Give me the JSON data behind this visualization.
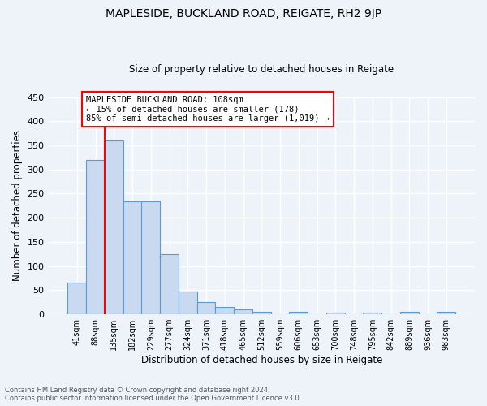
{
  "title": "MAPLESIDE, BUCKLAND ROAD, REIGATE, RH2 9JP",
  "subtitle": "Size of property relative to detached houses in Reigate",
  "xlabel": "Distribution of detached houses by size in Reigate",
  "ylabel": "Number of detached properties",
  "bar_labels": [
    "41sqm",
    "88sqm",
    "135sqm",
    "182sqm",
    "229sqm",
    "277sqm",
    "324sqm",
    "371sqm",
    "418sqm",
    "465sqm",
    "512sqm",
    "559sqm",
    "606sqm",
    "653sqm",
    "700sqm",
    "748sqm",
    "795sqm",
    "842sqm",
    "889sqm",
    "936sqm",
    "983sqm"
  ],
  "bar_values": [
    66,
    320,
    360,
    234,
    234,
    125,
    48,
    25,
    15,
    10,
    6,
    0,
    5,
    0,
    4,
    0,
    4,
    0,
    5,
    0,
    5
  ],
  "bar_color": "#c8d9f0",
  "bar_edge_color": "#5b9bd5",
  "annotation_line_color": "red",
  "annotation_text_line1": "MAPLESIDE BUCKLAND ROAD: 108sqm",
  "annotation_text_line2": "← 15% of detached houses are smaller (178)",
  "annotation_text_line3": "85% of semi-detached houses are larger (1,019) →",
  "annotation_box_color": "white",
  "annotation_box_edge_color": "red",
  "ylim": [
    0,
    450
  ],
  "yticks": [
    0,
    50,
    100,
    150,
    200,
    250,
    300,
    350,
    400,
    450
  ],
  "footer_line1": "Contains HM Land Registry data © Crown copyright and database right 2024.",
  "footer_line2": "Contains public sector information licensed under the Open Government Licence v3.0.",
  "background_color": "#eef2f9",
  "grid_color": "white",
  "title_fontsize": 10,
  "subtitle_fontsize": 8.5
}
